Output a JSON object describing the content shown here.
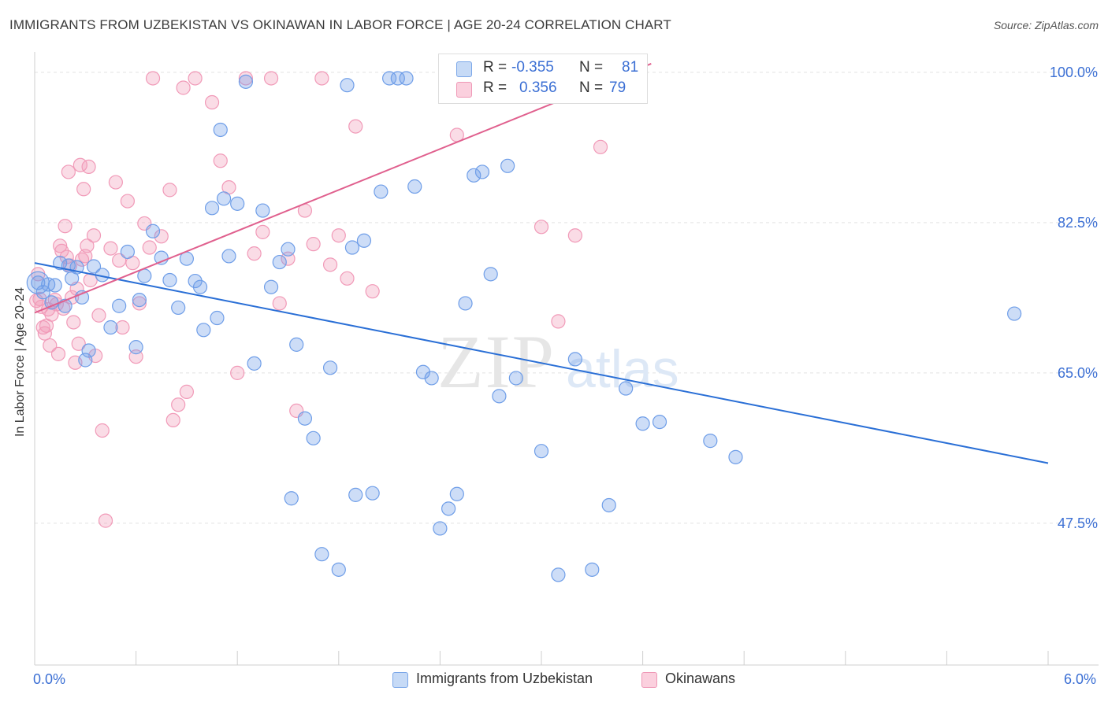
{
  "title": "IMMIGRANTS FROM UZBEKISTAN VS OKINAWAN IN LABOR FORCE | AGE 20-24 CORRELATION CHART",
  "source": "Source: ZipAtlas.com",
  "watermark": {
    "zip": "ZIP",
    "atlas": "atlas"
  },
  "legend": {
    "rows": [
      {
        "r_label": "R =",
        "r_value": "-0.355",
        "n_label": "N =",
        "n_value": "81"
      },
      {
        "r_label": "R =",
        "r_value": "0.356",
        "n_label": "N =",
        "n_value": "79"
      }
    ]
  },
  "chart_data": {
    "type": "scatter",
    "title": "IMMIGRANTS FROM UZBEKISTAN VS OKINAWAN IN LABOR FORCE | AGE 20-24 CORRELATION CHART",
    "xlabel": "",
    "ylabel": "In Labor Force | Age 20-24",
    "xlim": [
      0,
      6.0
    ],
    "ylim": [
      31,
      102
    ],
    "x_tick_labels": [
      "0.0%",
      "6.0%"
    ],
    "y_ticks": [
      47.5,
      65.0,
      82.5,
      100.0
    ],
    "y_tick_labels": [
      "47.5%",
      "65.0%",
      "82.5%",
      "100.0%"
    ],
    "grid": true,
    "legend_position": "top-center",
    "colors": {
      "uzbekistan": "#6f9ee8",
      "okinawans": "#f19ab8",
      "uzbekistan_line": "#2a6fd6",
      "okinawans_line": "#e0608e"
    },
    "series": [
      {
        "name": "Immigrants from Uzbekistan",
        "trend": {
          "x": [
            0.0,
            6.0
          ],
          "y": [
            77.8,
            54.5
          ]
        },
        "points": [
          [
            0.02,
            75.5
          ],
          [
            0.05,
            74.4
          ],
          [
            0.08,
            75.3
          ],
          [
            0.1,
            73.2
          ],
          [
            0.12,
            75.2
          ],
          [
            0.15,
            77.8
          ],
          [
            0.18,
            72.8
          ],
          [
            0.2,
            77.5
          ],
          [
            0.22,
            76.0
          ],
          [
            0.25,
            77.3
          ],
          [
            0.28,
            73.8
          ],
          [
            0.3,
            66.5
          ],
          [
            0.32,
            67.6
          ],
          [
            0.35,
            77.4
          ],
          [
            0.4,
            76.4
          ],
          [
            0.45,
            70.3
          ],
          [
            0.5,
            72.8
          ],
          [
            0.55,
            79.1
          ],
          [
            0.6,
            68.0
          ],
          [
            0.62,
            73.5
          ],
          [
            0.65,
            76.3
          ],
          [
            0.7,
            81.5
          ],
          [
            0.75,
            78.4
          ],
          [
            0.8,
            75.8
          ],
          [
            0.85,
            72.6
          ],
          [
            0.9,
            78.3
          ],
          [
            0.95,
            75.7
          ],
          [
            0.98,
            75.0
          ],
          [
            1.0,
            70.0
          ],
          [
            1.05,
            84.2
          ],
          [
            1.08,
            71.4
          ],
          [
            1.1,
            93.3
          ],
          [
            1.12,
            85.3
          ],
          [
            1.15,
            78.6
          ],
          [
            1.2,
            84.7
          ],
          [
            1.25,
            98.9
          ],
          [
            1.3,
            66.1
          ],
          [
            1.35,
            83.9
          ],
          [
            1.4,
            75.0
          ],
          [
            1.45,
            77.9
          ],
          [
            1.5,
            79.4
          ],
          [
            1.52,
            50.4
          ],
          [
            1.55,
            68.3
          ],
          [
            1.6,
            59.7
          ],
          [
            1.65,
            57.4
          ],
          [
            1.7,
            43.9
          ],
          [
            1.75,
            65.6
          ],
          [
            1.8,
            42.1
          ],
          [
            1.85,
            98.5
          ],
          [
            1.88,
            79.6
          ],
          [
            1.9,
            50.8
          ],
          [
            1.95,
            80.4
          ],
          [
            2.0,
            51.0
          ],
          [
            2.05,
            86.1
          ],
          [
            2.1,
            99.3
          ],
          [
            2.15,
            99.3
          ],
          [
            2.2,
            99.3
          ],
          [
            2.25,
            86.7
          ],
          [
            2.3,
            65.1
          ],
          [
            2.35,
            64.4
          ],
          [
            2.4,
            46.9
          ],
          [
            2.45,
            49.2
          ],
          [
            2.5,
            50.9
          ],
          [
            2.55,
            73.1
          ],
          [
            2.6,
            88.0
          ],
          [
            2.65,
            88.4
          ],
          [
            2.7,
            76.5
          ],
          [
            2.75,
            62.3
          ],
          [
            2.8,
            89.1
          ],
          [
            2.85,
            64.4
          ],
          [
            3.0,
            55.9
          ],
          [
            3.1,
            41.5
          ],
          [
            3.2,
            66.6
          ],
          [
            3.3,
            42.1
          ],
          [
            3.4,
            49.6
          ],
          [
            3.5,
            63.2
          ],
          [
            3.6,
            59.1
          ],
          [
            3.7,
            59.3
          ],
          [
            4.0,
            57.1
          ],
          [
            4.15,
            55.2
          ],
          [
            5.8,
            71.9
          ]
        ]
      },
      {
        "name": "Okinawans",
        "trend": {
          "x": [
            0.0,
            3.65
          ],
          "y": [
            72.0,
            101.0
          ]
        },
        "points": [
          [
            0.01,
            73.4
          ],
          [
            0.02,
            76.5
          ],
          [
            0.03,
            73.6
          ],
          [
            0.04,
            72.7
          ],
          [
            0.05,
            70.3
          ],
          [
            0.06,
            69.6
          ],
          [
            0.07,
            70.5
          ],
          [
            0.08,
            72.4
          ],
          [
            0.09,
            68.2
          ],
          [
            0.1,
            71.8
          ],
          [
            0.12,
            73.5
          ],
          [
            0.13,
            73.0
          ],
          [
            0.14,
            67.2
          ],
          [
            0.15,
            79.8
          ],
          [
            0.16,
            79.2
          ],
          [
            0.17,
            72.5
          ],
          [
            0.18,
            82.1
          ],
          [
            0.19,
            78.5
          ],
          [
            0.2,
            88.4
          ],
          [
            0.21,
            77.5
          ],
          [
            0.22,
            73.8
          ],
          [
            0.23,
            70.9
          ],
          [
            0.24,
            66.2
          ],
          [
            0.25,
            74.8
          ],
          [
            0.26,
            68.4
          ],
          [
            0.27,
            89.2
          ],
          [
            0.28,
            78.2
          ],
          [
            0.29,
            86.4
          ],
          [
            0.3,
            78.6
          ],
          [
            0.31,
            79.8
          ],
          [
            0.32,
            89.0
          ],
          [
            0.33,
            75.8
          ],
          [
            0.35,
            81.0
          ],
          [
            0.36,
            67.0
          ],
          [
            0.38,
            71.7
          ],
          [
            0.4,
            58.3
          ],
          [
            0.42,
            47.8
          ],
          [
            0.45,
            79.5
          ],
          [
            0.48,
            87.2
          ],
          [
            0.5,
            78.1
          ],
          [
            0.52,
            70.3
          ],
          [
            0.55,
            85.0
          ],
          [
            0.58,
            77.8
          ],
          [
            0.6,
            66.9
          ],
          [
            0.62,
            73.1
          ],
          [
            0.65,
            82.4
          ],
          [
            0.68,
            79.6
          ],
          [
            0.7,
            99.3
          ],
          [
            0.75,
            80.9
          ],
          [
            0.8,
            86.3
          ],
          [
            0.82,
            59.5
          ],
          [
            0.85,
            61.3
          ],
          [
            0.88,
            98.2
          ],
          [
            0.9,
            62.8
          ],
          [
            0.95,
            99.3
          ],
          [
            1.05,
            96.5
          ],
          [
            1.1,
            89.7
          ],
          [
            1.15,
            86.6
          ],
          [
            1.2,
            65.0
          ],
          [
            1.25,
            99.3
          ],
          [
            1.3,
            78.9
          ],
          [
            1.35,
            81.4
          ],
          [
            1.4,
            99.3
          ],
          [
            1.45,
            73.1
          ],
          [
            1.5,
            78.3
          ],
          [
            1.55,
            60.6
          ],
          [
            1.6,
            83.9
          ],
          [
            1.65,
            80.0
          ],
          [
            1.7,
            99.3
          ],
          [
            1.75,
            77.6
          ],
          [
            1.8,
            81.0
          ],
          [
            1.85,
            76.0
          ],
          [
            1.9,
            93.7
          ],
          [
            2.0,
            74.5
          ],
          [
            2.5,
            92.7
          ],
          [
            3.0,
            82.0
          ],
          [
            3.1,
            71.0
          ],
          [
            3.2,
            81.0
          ],
          [
            3.35,
            91.3
          ]
        ]
      }
    ]
  },
  "bottom_legend": {
    "items": [
      {
        "label": "Immigrants from Uzbekistan"
      },
      {
        "label": "Okinawans"
      }
    ]
  }
}
